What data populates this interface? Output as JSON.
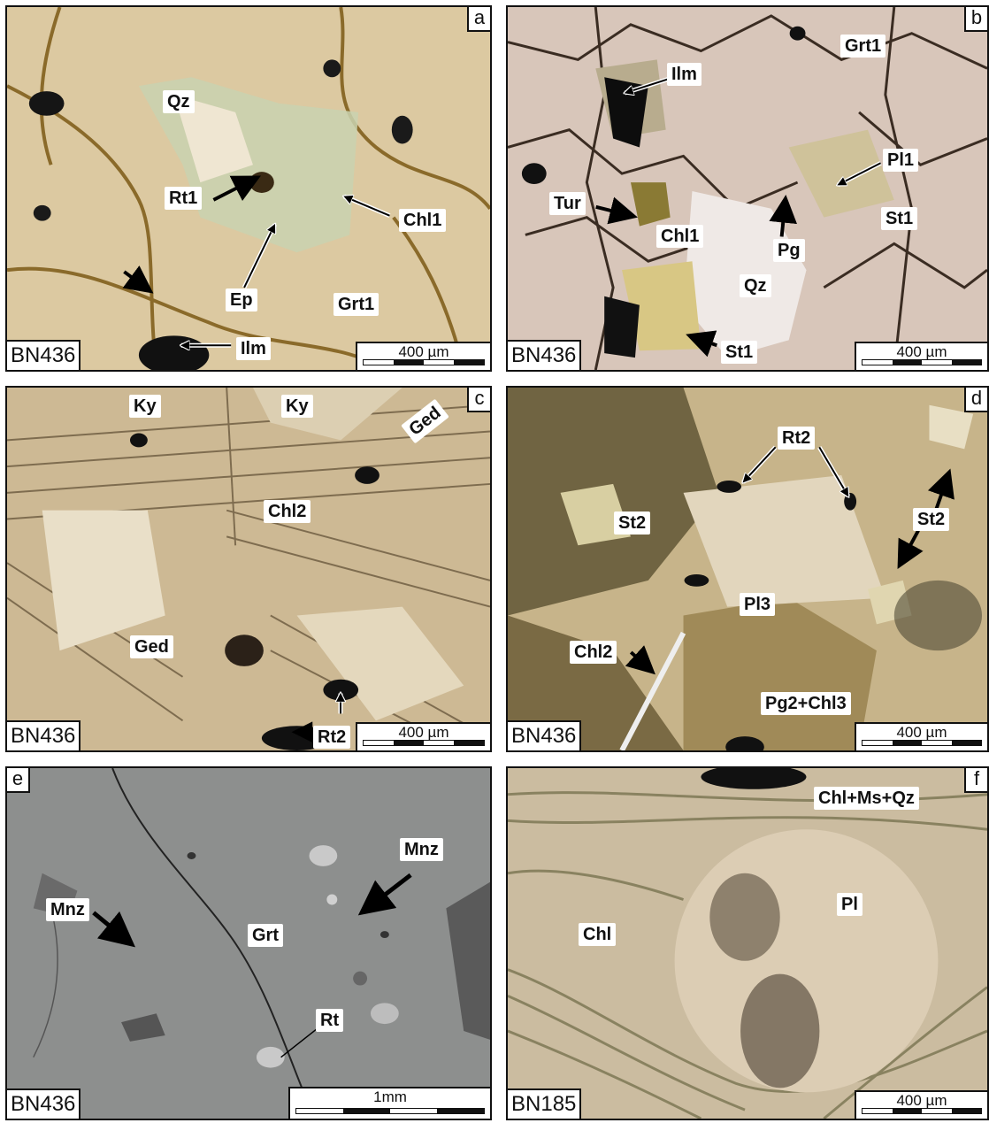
{
  "panels": {
    "a": {
      "letter": "a",
      "sample": "BN436",
      "scale": "400 µm",
      "labels": {
        "qz": "Qz",
        "rt1": "Rt1",
        "chl1": "Chl1",
        "ep": "Ep",
        "grt1": "Grt1",
        "ilm": "Ilm"
      }
    },
    "b": {
      "letter": "b",
      "sample": "BN436",
      "scale": "400 µm",
      "labels": {
        "grt1": "Grt1",
        "ilm": "Ilm",
        "pl1": "Pl1",
        "tur": "Tur",
        "st1a": "St1",
        "chl1": "Chl1",
        "pg": "Pg",
        "qz": "Qz",
        "st1b": "St1"
      }
    },
    "c": {
      "letter": "c",
      "sample": "BN436",
      "scale": "400 µm",
      "labels": {
        "ky1": "Ky",
        "ky2": "Ky",
        "ged1": "Ged",
        "chl2": "Chl2",
        "ged2": "Ged",
        "rt2": "Rt2"
      }
    },
    "d": {
      "letter": "d",
      "sample": "BN436",
      "scale": "400 µm",
      "labels": {
        "rt2": "Rt2",
        "st2a": "St2",
        "st2b": "St2",
        "pl3": "Pl3",
        "chl2": "Chl2",
        "pg2chl3": "Pg2+Chl3"
      }
    },
    "e": {
      "letter": "e",
      "sample": "BN436",
      "scale": "1mm",
      "labels": {
        "mnz1": "Mnz",
        "mnz2": "Mnz",
        "grt": "Grt",
        "rt": "Rt"
      }
    },
    "f": {
      "letter": "f",
      "sample": "BN185",
      "scale": "400 µm",
      "labels": {
        "chlmsqz": "Chl+Ms+Qz",
        "chl": "Chl",
        "pl": "Pl"
      }
    }
  }
}
